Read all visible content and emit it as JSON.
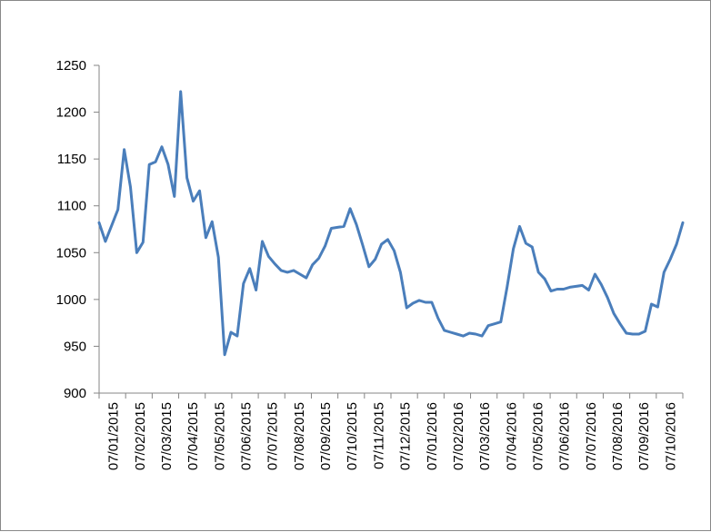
{
  "chart_data": {
    "type": "line",
    "title": "",
    "xlabel": "",
    "ylabel": "",
    "ylim": [
      900,
      1250
    ],
    "yticks": [
      900,
      950,
      1000,
      1050,
      1100,
      1150,
      1200,
      1250
    ],
    "xtick_labels": [
      "07/01/2015",
      "07/02/2015",
      "07/03/2015",
      "07/04/2015",
      "07/05/2015",
      "07/06/2015",
      "07/07/2015",
      "07/08/2015",
      "07/09/2015",
      "07/10/2015",
      "07/11/2015",
      "07/12/2015",
      "07/01/2016",
      "07/02/2016",
      "07/03/2016",
      "07/04/2016",
      "07/05/2016",
      "07/06/2016",
      "07/07/2016",
      "07/08/2016",
      "07/09/2016",
      "07/10/2016"
    ],
    "grid": false,
    "legend": "none",
    "line_color": "#4a7ebb",
    "series": [
      {
        "values": [
          1082,
          1062,
          1079,
          1096,
          1160,
          1120,
          1050,
          1061,
          1144,
          1147,
          1163,
          1144,
          1110,
          1222,
          1130,
          1105,
          1116,
          1066,
          1083,
          1045,
          941,
          965,
          961,
          1017,
          1033,
          1010,
          1062,
          1046,
          1038,
          1031,
          1029,
          1031,
          1027,
          1023,
          1037,
          1044,
          1057,
          1076,
          1077,
          1078,
          1097,
          1080,
          1058,
          1035,
          1043,
          1059,
          1064,
          1052,
          1029,
          991,
          996,
          999,
          997,
          997,
          980,
          967,
          965,
          963,
          961,
          964,
          963,
          961,
          972,
          974,
          976,
          1013,
          1054,
          1078,
          1060,
          1056,
          1029,
          1022,
          1009,
          1011,
          1011,
          1013,
          1014,
          1015,
          1010,
          1027,
          1016,
          1002,
          985,
          974,
          964,
          963,
          963,
          966,
          995,
          992,
          1029,
          1043,
          1059,
          1082
        ]
      }
    ]
  }
}
